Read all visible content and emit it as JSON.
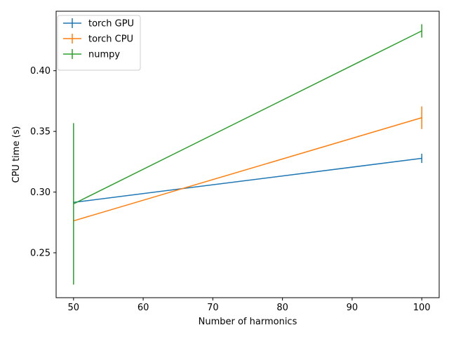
{
  "chart_data": {
    "type": "line",
    "xlabel": "Number of harmonics",
    "ylabel": "CPU time (s)",
    "xlim": [
      47.5,
      102.5
    ],
    "ylim": [
      0.213,
      0.449
    ],
    "xticks": [
      50,
      60,
      70,
      80,
      90,
      100
    ],
    "xtick_labels": [
      "50",
      "60",
      "70",
      "80",
      "90",
      "100"
    ],
    "yticks": [
      0.25,
      0.3,
      0.35,
      0.4
    ],
    "ytick_labels": [
      "0.25",
      "0.30",
      "0.35",
      "0.40"
    ],
    "grid": false,
    "legend_position": "top-left",
    "series": [
      {
        "name": "torch GPU",
        "color": "#1f77b4",
        "points": [
          {
            "x": 50,
            "y": 0.2915,
            "yerr": 0.0005
          },
          {
            "x": 100,
            "y": 0.3278,
            "yerr": 0.0038
          }
        ]
      },
      {
        "name": "torch CPU",
        "color": "#ff7f0e",
        "points": [
          {
            "x": 50,
            "y": 0.2763,
            "yerr": 0.0005
          },
          {
            "x": 100,
            "y": 0.3613,
            "yerr": 0.0093
          }
        ]
      },
      {
        "name": "numpy",
        "color": "#2ca02c",
        "points": [
          {
            "x": 50,
            "y": 0.2903,
            "yerr": 0.0665
          },
          {
            "x": 100,
            "y": 0.4328,
            "yerr": 0.0055
          }
        ]
      }
    ]
  }
}
